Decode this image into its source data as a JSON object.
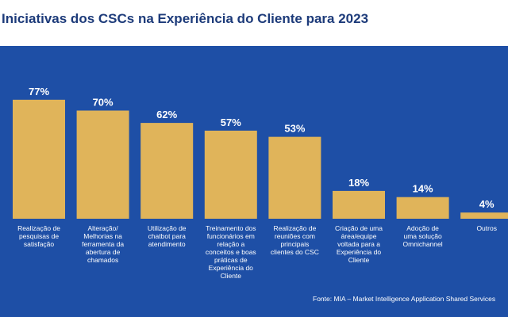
{
  "chart_data": {
    "type": "bar",
    "title": "Iniciativas dos CSCs na Experiência do Cliente para 2023",
    "categories": [
      "Realização de pesquisas de satisfação",
      "Alteração/ Melhorias na ferramenta da abertura de chamados",
      "Utilização de chatbot para atendimento",
      "Treinamento dos funcionários em relação a conceitos e boas práticas de Experiência do Cliente",
      "Realização de reuniões com principais clientes do CSC",
      "Criação de uma área/equipe voltada para a Experiência do Cliente",
      "Adoção de uma solução Omnichannel",
      "Outros"
    ],
    "category_lines": [
      [
        "Realização de",
        "pesquisas de",
        "satisfação"
      ],
      [
        "Alteração/",
        "Melhorias na",
        "ferramenta da",
        "abertura de",
        "chamados"
      ],
      [
        "Utilização de",
        "chatbot para",
        "atendimento"
      ],
      [
        "Treinamento dos",
        "funcionários em",
        "relação a",
        "conceitos e boas",
        "práticas de",
        "Experiência do",
        "Cliente"
      ],
      [
        "Realização de",
        "reuniões com",
        "principais",
        "clientes do CSC"
      ],
      [
        "Criação de uma",
        "área/equipe",
        "voltada para a",
        "Experiência do",
        "Cliente"
      ],
      [
        "Adoção de",
        "uma solução",
        "Omnichannel"
      ],
      [
        "Outros"
      ]
    ],
    "values": [
      77,
      70,
      62,
      57,
      53,
      18,
      14,
      4
    ],
    "value_labels": [
      "77%",
      "70%",
      "62%",
      "57%",
      "53%",
      "18%",
      "14%",
      "4%"
    ],
    "ylim": [
      0,
      100
    ],
    "grid": false,
    "xlabel": "",
    "ylabel": "",
    "colors": {
      "bar": "#e0b45a",
      "background": "#1e4fa6",
      "text": "#ffffff",
      "title": "#1d3b7a"
    }
  },
  "title": "Iniciativas dos CSCs na Experiência do Cliente para 2023",
  "source": "Fonte: MIA – Market Intelligence Application Shared Services"
}
